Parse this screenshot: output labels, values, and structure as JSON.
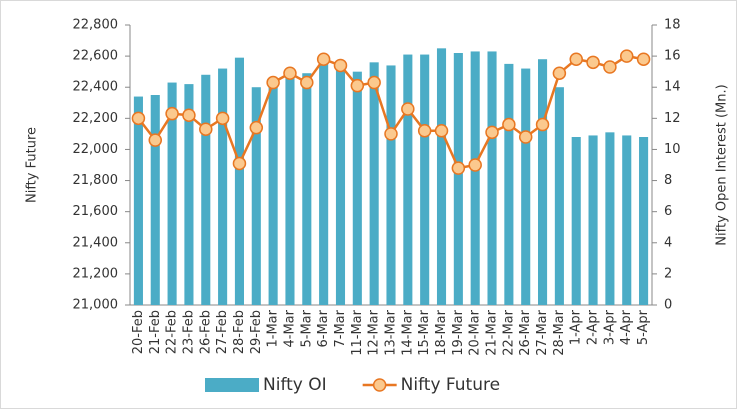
{
  "chart_data": {
    "type": "combo",
    "y_label": "Nifty Future",
    "y2_label": "Nifty Open Interest (Mn.)",
    "categories": [
      "20-Feb",
      "21-Feb",
      "22-Feb",
      "23-Feb",
      "26-Feb",
      "27-Feb",
      "28-Feb",
      "29-Feb",
      "1-Mar",
      "4-Mar",
      "5-Mar",
      "6-Mar",
      "7-Mar",
      "11-Mar",
      "12-Mar",
      "13-Mar",
      "14-Mar",
      "15-Mar",
      "18-Mar",
      "19-Mar",
      "20-Mar",
      "21-Mar",
      "22-Mar",
      "26-Mar",
      "27-Mar",
      "28-Mar",
      "1-Apr",
      "2-Apr",
      "3-Apr",
      "4-Apr",
      "5-Apr"
    ],
    "series": [
      {
        "name": "Nifty OI",
        "type": "bar",
        "axis": "y2",
        "color": "#4bacc6",
        "values": [
          13.4,
          13.5,
          14.3,
          14.2,
          14.8,
          15.2,
          15.9,
          14.0,
          14.3,
          14.7,
          14.9,
          15.6,
          15.3,
          15.0,
          15.6,
          15.4,
          16.1,
          16.1,
          16.5,
          16.2,
          16.3,
          16.3,
          15.5,
          15.2,
          15.8,
          14.0,
          10.8,
          10.9,
          11.1,
          10.9,
          10.8
        ]
      },
      {
        "name": "Nifty Future",
        "type": "line",
        "axis": "y",
        "color": "#e87722",
        "marker_color": "#fbc98e",
        "values": [
          22200,
          22060,
          22230,
          22220,
          22130,
          22200,
          21910,
          22140,
          22430,
          22490,
          22430,
          22580,
          22540,
          22410,
          22430,
          22100,
          22260,
          22120,
          22120,
          21880,
          21900,
          22110,
          22160,
          22080,
          22160,
          22490,
          22580,
          22560,
          22530,
          22600,
          22580
        ]
      }
    ],
    "ylim": [
      21000,
      22800
    ],
    "yticks": [
      {
        "value": 21000,
        "label": "21,000"
      },
      {
        "value": 21200,
        "label": "21,200"
      },
      {
        "value": 21400,
        "label": "21,400"
      },
      {
        "value": 21600,
        "label": "21,600"
      },
      {
        "value": 21800,
        "label": "21,800"
      },
      {
        "value": 22000,
        "label": "22,000"
      },
      {
        "value": 22200,
        "label": "22,200"
      },
      {
        "value": 22400,
        "label": "22,400"
      },
      {
        "value": 22600,
        "label": "22,600"
      },
      {
        "value": 22800,
        "label": "22,800"
      }
    ],
    "y2lim": [
      0,
      18
    ],
    "y2ticks": [
      0,
      2,
      4,
      6,
      8,
      10,
      12,
      14,
      16,
      18
    ],
    "legend": "bottom"
  }
}
